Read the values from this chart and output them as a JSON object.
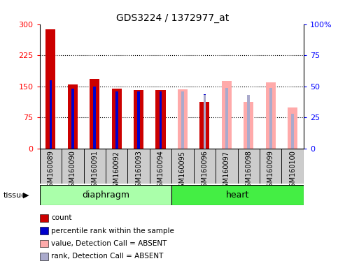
{
  "title": "GDS3224 / 1372977_at",
  "samples": [
    "GSM160089",
    "GSM160090",
    "GSM160091",
    "GSM160092",
    "GSM160093",
    "GSM160094",
    "GSM160095",
    "GSM160096",
    "GSM160097",
    "GSM160098",
    "GSM160099",
    "GSM160100"
  ],
  "n_diaphragm": 6,
  "n_heart": 6,
  "count_values": [
    287,
    154,
    168,
    145,
    141,
    141,
    null,
    113,
    null,
    null,
    null,
    null
  ],
  "rank_values": [
    55,
    48,
    50,
    46,
    46,
    46,
    null,
    44,
    null,
    null,
    null,
    null
  ],
  "absent_value_values": [
    null,
    null,
    null,
    null,
    null,
    null,
    143,
    null,
    163,
    113,
    160,
    100
  ],
  "absent_rank_values": [
    null,
    null,
    null,
    null,
    null,
    null,
    46,
    43,
    49,
    43,
    49,
    28
  ],
  "ylim_left": [
    0,
    300
  ],
  "ylim_right": [
    0,
    100
  ],
  "yticks_left": [
    0,
    75,
    150,
    225,
    300
  ],
  "yticks_right": [
    0,
    25,
    50,
    75,
    100
  ],
  "color_count": "#cc0000",
  "color_rank": "#0000cc",
  "color_absent_value": "#ffaaaa",
  "color_absent_rank": "#aaaacc",
  "color_diaphragm_bg": "#aaffaa",
  "color_heart_bg": "#44ee44",
  "color_tick_bg": "#cccccc",
  "tissue_label": "tissue",
  "diaphragm_label": "diaphragm",
  "heart_label": "heart",
  "legend_labels": [
    "count",
    "percentile rank within the sample",
    "value, Detection Call = ABSENT",
    "rank, Detection Call = ABSENT"
  ],
  "legend_colors": [
    "#cc0000",
    "#0000cc",
    "#ffaaaa",
    "#aaaacc"
  ]
}
